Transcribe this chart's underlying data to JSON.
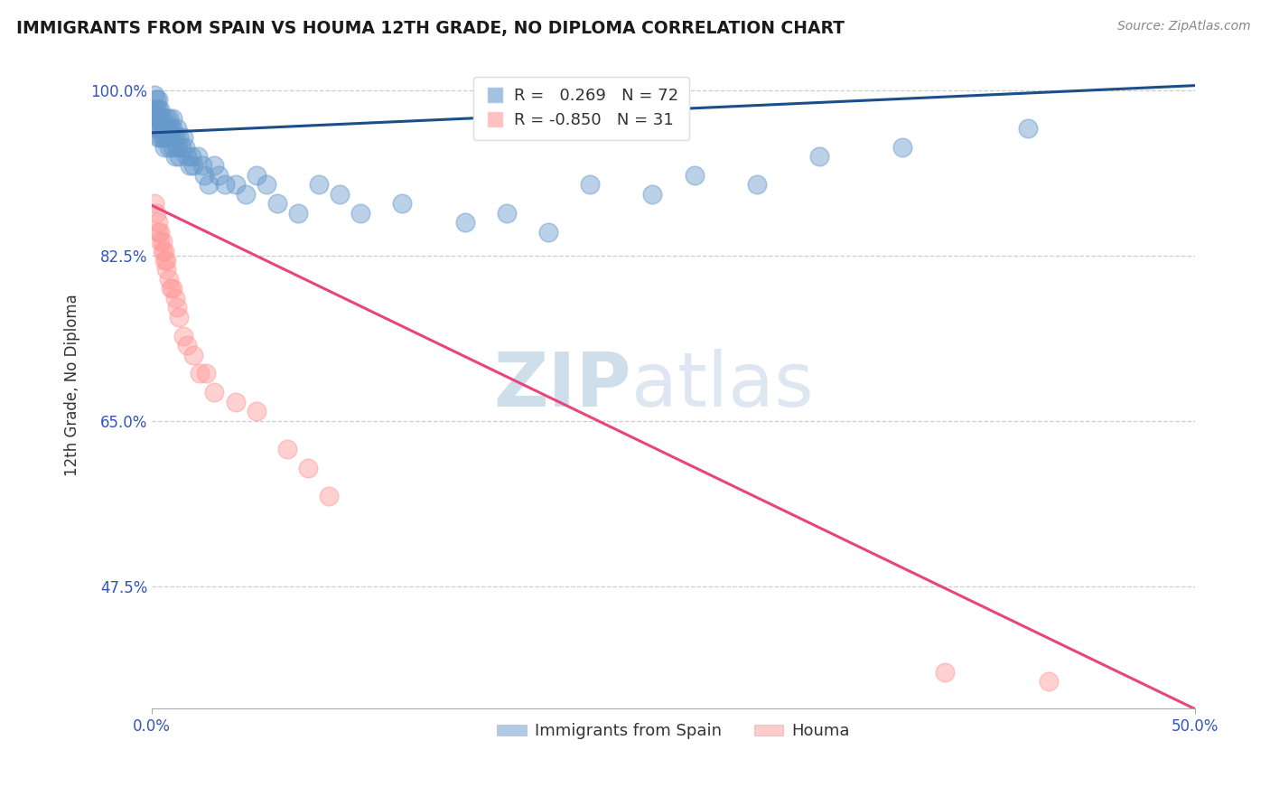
{
  "title": "IMMIGRANTS FROM SPAIN VS HOUMA 12TH GRADE, NO DIPLOMA CORRELATION CHART",
  "source": "Source: ZipAtlas.com",
  "ylabel": "12th Grade, No Diploma",
  "xlim": [
    0.0,
    0.5
  ],
  "ylim": [
    0.345,
    1.03
  ],
  "ytick_values": [
    1.0,
    0.825,
    0.65,
    0.475
  ],
  "ytick_labels": [
    "100.0%",
    "82.5%",
    "65.0%",
    "47.5%"
  ],
  "blue_R": 0.269,
  "blue_N": 72,
  "pink_R": -0.85,
  "pink_N": 31,
  "blue_color": "#6699cc",
  "pink_color": "#ff9999",
  "line_blue_color": "#1a4f8a",
  "line_pink_color": "#e8457a",
  "watermark_zip": "ZIP",
  "watermark_atlas": "atlas",
  "watermark_color_zip": "#c5d8e8",
  "watermark_color_atlas": "#c5d8e8",
  "background_color": "#ffffff",
  "legend_label_blue": "Immigrants from Spain",
  "legend_label_pink": "Houma",
  "blue_line_x0": 0.0,
  "blue_line_y0": 0.955,
  "blue_line_x1": 0.5,
  "blue_line_y1": 1.005,
  "pink_line_x0": 0.0,
  "pink_line_y0": 0.878,
  "pink_line_x1": 0.5,
  "pink_line_y1": 0.345,
  "blue_x": [
    0.001,
    0.001,
    0.001,
    0.002,
    0.002,
    0.002,
    0.002,
    0.003,
    0.003,
    0.003,
    0.003,
    0.003,
    0.004,
    0.004,
    0.004,
    0.004,
    0.005,
    0.005,
    0.005,
    0.006,
    0.006,
    0.006,
    0.007,
    0.007,
    0.008,
    0.008,
    0.008,
    0.009,
    0.009,
    0.01,
    0.01,
    0.01,
    0.011,
    0.011,
    0.012,
    0.012,
    0.013,
    0.013,
    0.014,
    0.015,
    0.016,
    0.017,
    0.018,
    0.019,
    0.02,
    0.022,
    0.024,
    0.025,
    0.027,
    0.03,
    0.032,
    0.035,
    0.04,
    0.045,
    0.05,
    0.055,
    0.06,
    0.07,
    0.08,
    0.09,
    0.1,
    0.12,
    0.15,
    0.17,
    0.19,
    0.21,
    0.24,
    0.26,
    0.29,
    0.32,
    0.36,
    0.42
  ],
  "blue_y": [
    0.995,
    0.98,
    0.97,
    0.99,
    0.98,
    0.97,
    0.96,
    0.99,
    0.98,
    0.97,
    0.96,
    0.95,
    0.98,
    0.97,
    0.96,
    0.95,
    0.97,
    0.96,
    0.95,
    0.96,
    0.95,
    0.94,
    0.97,
    0.95,
    0.97,
    0.96,
    0.94,
    0.96,
    0.95,
    0.97,
    0.96,
    0.94,
    0.95,
    0.93,
    0.96,
    0.94,
    0.95,
    0.93,
    0.94,
    0.95,
    0.94,
    0.93,
    0.92,
    0.93,
    0.92,
    0.93,
    0.92,
    0.91,
    0.9,
    0.92,
    0.91,
    0.9,
    0.9,
    0.89,
    0.91,
    0.9,
    0.88,
    0.87,
    0.9,
    0.89,
    0.87,
    0.88,
    0.86,
    0.87,
    0.85,
    0.9,
    0.89,
    0.91,
    0.9,
    0.93,
    0.94,
    0.96
  ],
  "pink_x": [
    0.001,
    0.002,
    0.003,
    0.003,
    0.004,
    0.004,
    0.005,
    0.005,
    0.006,
    0.006,
    0.007,
    0.007,
    0.008,
    0.009,
    0.01,
    0.011,
    0.012,
    0.013,
    0.015,
    0.017,
    0.02,
    0.023,
    0.026,
    0.03,
    0.04,
    0.05,
    0.065,
    0.075,
    0.085,
    0.38,
    0.43
  ],
  "pink_y": [
    0.88,
    0.87,
    0.86,
    0.85,
    0.85,
    0.84,
    0.84,
    0.83,
    0.83,
    0.82,
    0.82,
    0.81,
    0.8,
    0.79,
    0.79,
    0.78,
    0.77,
    0.76,
    0.74,
    0.73,
    0.72,
    0.7,
    0.7,
    0.68,
    0.67,
    0.66,
    0.62,
    0.6,
    0.57,
    0.384,
    0.374
  ]
}
